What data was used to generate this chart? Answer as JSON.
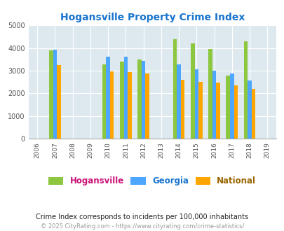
{
  "title": "Hogansville Property Crime Index",
  "title_color": "#1874CD",
  "years": [
    2006,
    2007,
    2008,
    2009,
    2010,
    2011,
    2012,
    2013,
    2014,
    2015,
    2016,
    2017,
    2018,
    2019
  ],
  "data_years": [
    2007,
    2010,
    2011,
    2012,
    2014,
    2015,
    2016,
    2017,
    2018
  ],
  "hogansville": [
    3900,
    3280,
    3400,
    3500,
    4380,
    4200,
    3970,
    2780,
    4300
  ],
  "georgia": [
    3920,
    3630,
    3620,
    3430,
    3280,
    3050,
    3010,
    2870,
    2580
  ],
  "national": [
    3240,
    2960,
    2940,
    2870,
    2610,
    2490,
    2460,
    2350,
    2180
  ],
  "hogansville_color": "#8DC63F",
  "georgia_color": "#4DA6FF",
  "national_color": "#FFA500",
  "bg_color": "#DDE9EF",
  "ylim": [
    0,
    5000
  ],
  "yticks": [
    0,
    1000,
    2000,
    3000,
    4000,
    5000
  ],
  "bar_width": 0.22,
  "legend_labels": [
    "Hogansville",
    "Georgia",
    "National"
  ],
  "legend_colors": [
    "#8DC63F",
    "#4DA6FF",
    "#FFA500"
  ],
  "legend_text_colors": [
    "#CC1177",
    "#1874CD",
    "#996600"
  ],
  "footnote1": "Crime Index corresponds to incidents per 100,000 inhabitants",
  "footnote2": "© 2025 CityRating.com - https://www.cityrating.com/crime-statistics/",
  "footnote1_color": "#222222",
  "footnote2_color": "#999999",
  "grid_color": "#ffffff",
  "tick_label_color": "#555555",
  "spine_color": "#aaaaaa"
}
